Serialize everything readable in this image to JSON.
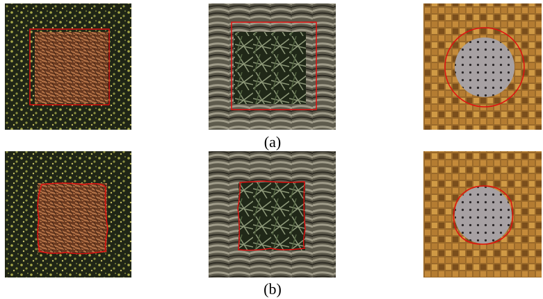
{
  "captions": {
    "a": "(a)",
    "b": "(b)"
  }
}
